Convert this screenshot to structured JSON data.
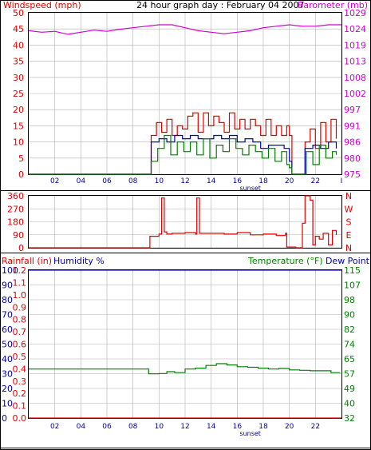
{
  "header": {
    "title": "24 hour graph day : February 04 2007",
    "left_label": "Windspeed (mph)",
    "right_label": "Barometer (mb)"
  },
  "colors": {
    "wind": "#e00000",
    "gust_line": "#e00000",
    "avg": "#0000c0",
    "green": "#008000",
    "baro": "#d000d0",
    "axis_blue": "#0000a0",
    "grid": "#b0b0b0"
  },
  "chart_data": [
    {
      "type": "line",
      "title": "24 hour graph day : February 04 2007",
      "ylabel": "Windspeed (mph)",
      "y2label": "Barometer (mb)",
      "x_ticks": [
        "02",
        "04",
        "06",
        "08",
        "10",
        "12",
        "14",
        "16",
        "18",
        "20",
        "22",
        "I"
      ],
      "x_annotation": "sunset",
      "y_ticks": [
        0,
        5,
        10,
        15,
        20,
        25,
        30,
        35,
        40,
        45,
        50
      ],
      "y2_ticks": [
        975,
        980,
        986,
        991,
        997,
        1002,
        1008,
        1013,
        1019,
        1024,
        1029
      ],
      "ylim": [
        0,
        50
      ],
      "y2lim": [
        975,
        1029
      ],
      "xlim": [
        0,
        24
      ],
      "grid": true,
      "series": [
        {
          "color": "wind",
          "x": [
            0,
            9.2,
            9.4,
            9.8,
            10.2,
            10.6,
            11.0,
            11.4,
            11.8,
            12.2,
            12.6,
            13.0,
            13.4,
            13.8,
            14.2,
            14.6,
            15.0,
            15.4,
            15.8,
            16.2,
            16.6,
            17.0,
            17.4,
            17.8,
            18.2,
            18.6,
            19.0,
            19.4,
            19.8,
            20.0,
            20.2,
            21.0,
            21.2,
            21.6,
            22.0,
            22.4,
            22.8,
            23.2,
            23.6
          ],
          "values": [
            0,
            0,
            12,
            16,
            13,
            17,
            12,
            15,
            14,
            18,
            19,
            13,
            19,
            15,
            18,
            16,
            13,
            19,
            14,
            17,
            14,
            17,
            15,
            12,
            17,
            12,
            15,
            12,
            15,
            12,
            0,
            0,
            10,
            14,
            8,
            16,
            10,
            17,
            11
          ]
        },
        {
          "color": "avg",
          "x": [
            0,
            9.2,
            9.4,
            10.0,
            10.6,
            11.2,
            11.8,
            12.4,
            13.0,
            13.6,
            14.2,
            14.8,
            15.4,
            16.0,
            16.6,
            17.2,
            17.8,
            18.4,
            19.0,
            19.6,
            20.0,
            20.2,
            21.0,
            21.2,
            21.8,
            22.4,
            23.0,
            23.6
          ],
          "values": [
            0,
            0,
            10,
            11,
            10,
            12,
            11,
            12,
            11,
            11,
            12,
            11,
            12,
            10,
            11,
            10,
            8,
            9,
            9,
            8,
            4,
            0,
            0,
            8,
            9,
            8,
            10,
            8
          ]
        },
        {
          "color": "green",
          "x": [
            0,
            9.2,
            9.4,
            9.9,
            10.4,
            10.9,
            11.4,
            11.9,
            12.4,
            12.9,
            13.4,
            13.9,
            14.4,
            14.9,
            15.4,
            15.9,
            16.4,
            16.9,
            17.4,
            17.9,
            18.4,
            18.9,
            19.4,
            19.8,
            20.0,
            20.2,
            21.0,
            21.3,
            21.8,
            22.3,
            22.8,
            23.3,
            23.6
          ],
          "values": [
            0,
            0,
            4,
            8,
            12,
            6,
            10,
            7,
            10,
            6,
            11,
            5,
            9,
            7,
            11,
            8,
            6,
            9,
            7,
            5,
            8,
            4,
            7,
            3,
            2,
            0,
            0,
            7,
            3,
            9,
            5,
            7,
            6
          ]
        },
        {
          "color": "baro",
          "axis": "right",
          "x": [
            0,
            1,
            2,
            3,
            4,
            5,
            6,
            7,
            8,
            9,
            10,
            11,
            12,
            13,
            14,
            15,
            16,
            17,
            18,
            19,
            20,
            21,
            22,
            23,
            24
          ],
          "values": [
            1023,
            1022.5,
            1022.8,
            1021.8,
            1022.5,
            1023.2,
            1022.8,
            1023.5,
            1024,
            1024.5,
            1025,
            1025,
            1024,
            1023,
            1022.5,
            1022,
            1022.5,
            1023,
            1024,
            1024.5,
            1025,
            1024.5,
            1024.5,
            1025,
            1025
          ]
        }
      ]
    },
    {
      "type": "line",
      "x_ticks": [
        "02",
        "04",
        "06",
        "08",
        "10",
        "12",
        "14",
        "16",
        "18",
        "20",
        "22",
        "I"
      ],
      "x_annotation": "sunset",
      "y_ticks": [
        0,
        90,
        180,
        270,
        360
      ],
      "y2_ticks": [
        "N",
        "E",
        "S",
        "W",
        "N"
      ],
      "ylim": [
        0,
        360
      ],
      "xlim": [
        0,
        24
      ],
      "grid": true,
      "series": [
        {
          "color": "wind",
          "x": [
            0,
            9.2,
            9.3,
            10,
            10.2,
            10.4,
            10.6,
            11,
            12,
            12.8,
            12.9,
            13.1,
            14,
            15,
            16,
            17,
            18,
            19,
            19.7,
            19.8,
            20.5,
            20.9,
            21.0,
            21.2,
            21.4,
            21.6,
            21.8,
            22,
            22.3,
            22.6,
            23,
            23.3,
            23.6
          ],
          "values": [
            0,
            0,
            80,
            95,
            345,
            110,
            95,
            100,
            105,
            95,
            345,
            100,
            100,
            95,
            105,
            90,
            95,
            85,
            100,
            5,
            0,
            0,
            170,
            360,
            360,
            330,
            20,
            80,
            60,
            100,
            20,
            120,
            90
          ]
        }
      ]
    },
    {
      "type": "line",
      "left_labels": [
        "Rainfall (in)",
        "Humidity %"
      ],
      "right_labels": [
        "Temperature (°F)",
        "Dew Point"
      ],
      "x_ticks": [
        "02",
        "04",
        "06",
        "08",
        "10",
        "12",
        "14",
        "16",
        "18",
        "20",
        "22"
      ],
      "x_annotation": "sunset",
      "humidity_ticks": [
        0,
        10,
        20,
        30,
        40,
        50,
        60,
        70,
        80,
        90,
        100
      ],
      "rain_ticks": [
        "0.0",
        "0.1",
        "0.2",
        "0.3",
        "0.4",
        "0.5",
        "0.6",
        "0.7",
        "0.8",
        "0.9",
        "1.0",
        "1.1",
        "1.2"
      ],
      "temp_ticks": [
        32,
        40,
        49,
        57,
        65,
        74,
        82,
        90,
        98,
        107,
        115
      ],
      "ylim": [
        0,
        100
      ],
      "y2lim": [
        32,
        115
      ],
      "xlim": [
        0,
        24
      ],
      "grid": true,
      "series": [
        {
          "color": "avg",
          "axis": "humidity",
          "x": [
            0,
            24
          ],
          "values": [
            100,
            100
          ]
        },
        {
          "color": "green",
          "axis": "temp",
          "x": [
            0,
            9.1,
            9.2,
            10.0,
            10.6,
            11.2,
            12.0,
            12.8,
            13.6,
            14.4,
            15.2,
            16.0,
            16.8,
            17.6,
            18.4,
            19.2,
            20.0,
            20.8,
            21.6,
            22.4,
            23.2,
            23.9
          ],
          "values": [
            59.5,
            59.5,
            56.8,
            57.0,
            58.0,
            57.5,
            59.5,
            60.0,
            61.5,
            62.5,
            61.8,
            60.8,
            60.5,
            60.0,
            59.5,
            59.8,
            59.0,
            58.8,
            58.5,
            58.5,
            57.5,
            57.5
          ]
        },
        {
          "color": "wind",
          "axis": "rain",
          "x": [
            0,
            24
          ],
          "values": [
            0,
            0
          ]
        }
      ]
    }
  ]
}
